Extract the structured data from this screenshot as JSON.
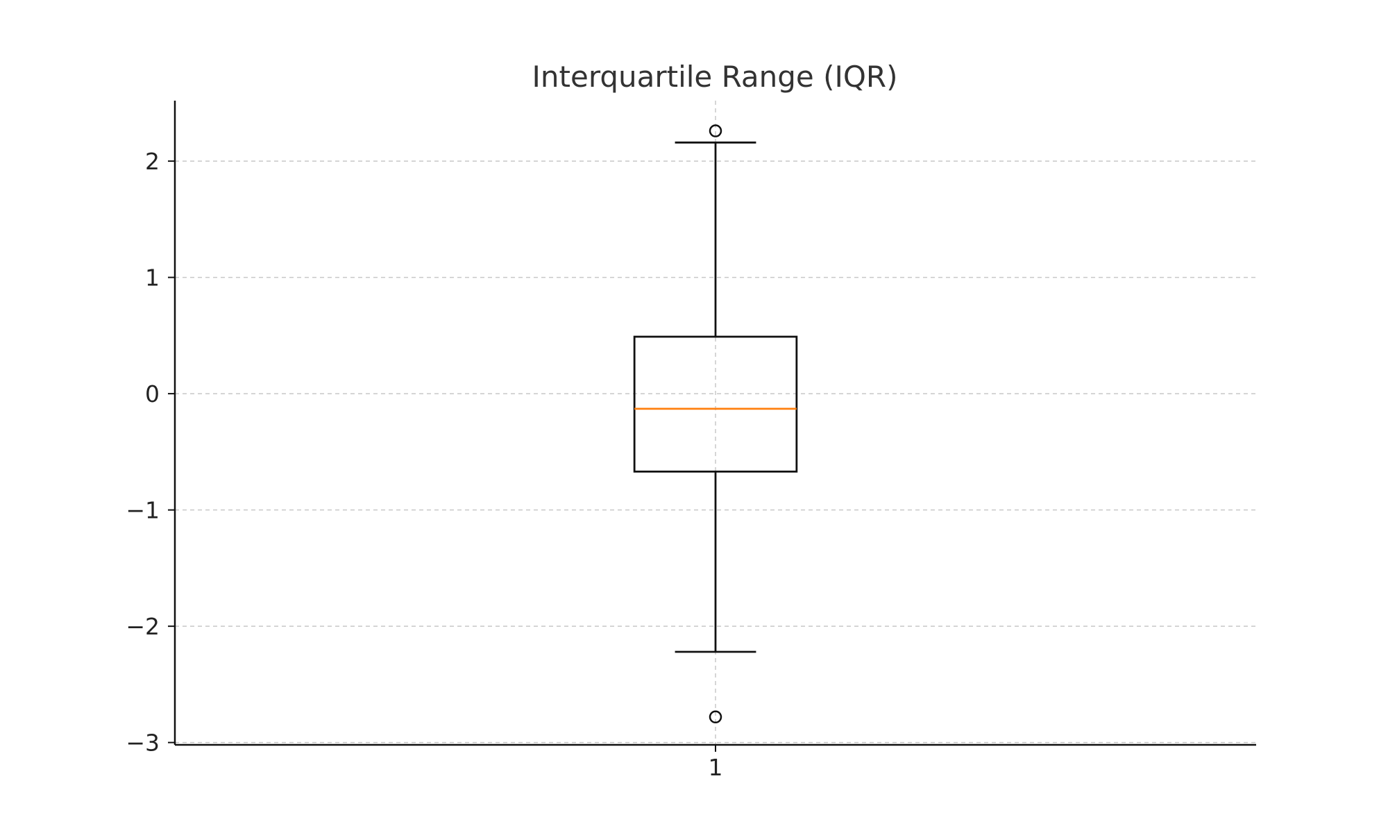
{
  "chart_data": {
    "type": "box",
    "title": "Interquartile Range (IQR)",
    "xlabel": "",
    "ylabel": "",
    "categories": [
      "1"
    ],
    "ylim": [
      -3.02,
      2.52
    ],
    "yticks": [
      -3,
      -2,
      -1,
      0,
      1,
      2
    ],
    "ytick_labels": [
      "−3",
      "−2",
      "−1",
      "0",
      "1",
      "2"
    ],
    "grid": true,
    "boxes": [
      {
        "category": "1",
        "whisker_low": -2.22,
        "q1": -0.67,
        "median": -0.13,
        "q3": 0.49,
        "whisker_high": 2.16,
        "outliers": [
          2.26,
          -2.78
        ]
      }
    ],
    "colors": {
      "median": "#ff7f0e",
      "box": "#111111",
      "grid": "#c8c8c8"
    }
  }
}
